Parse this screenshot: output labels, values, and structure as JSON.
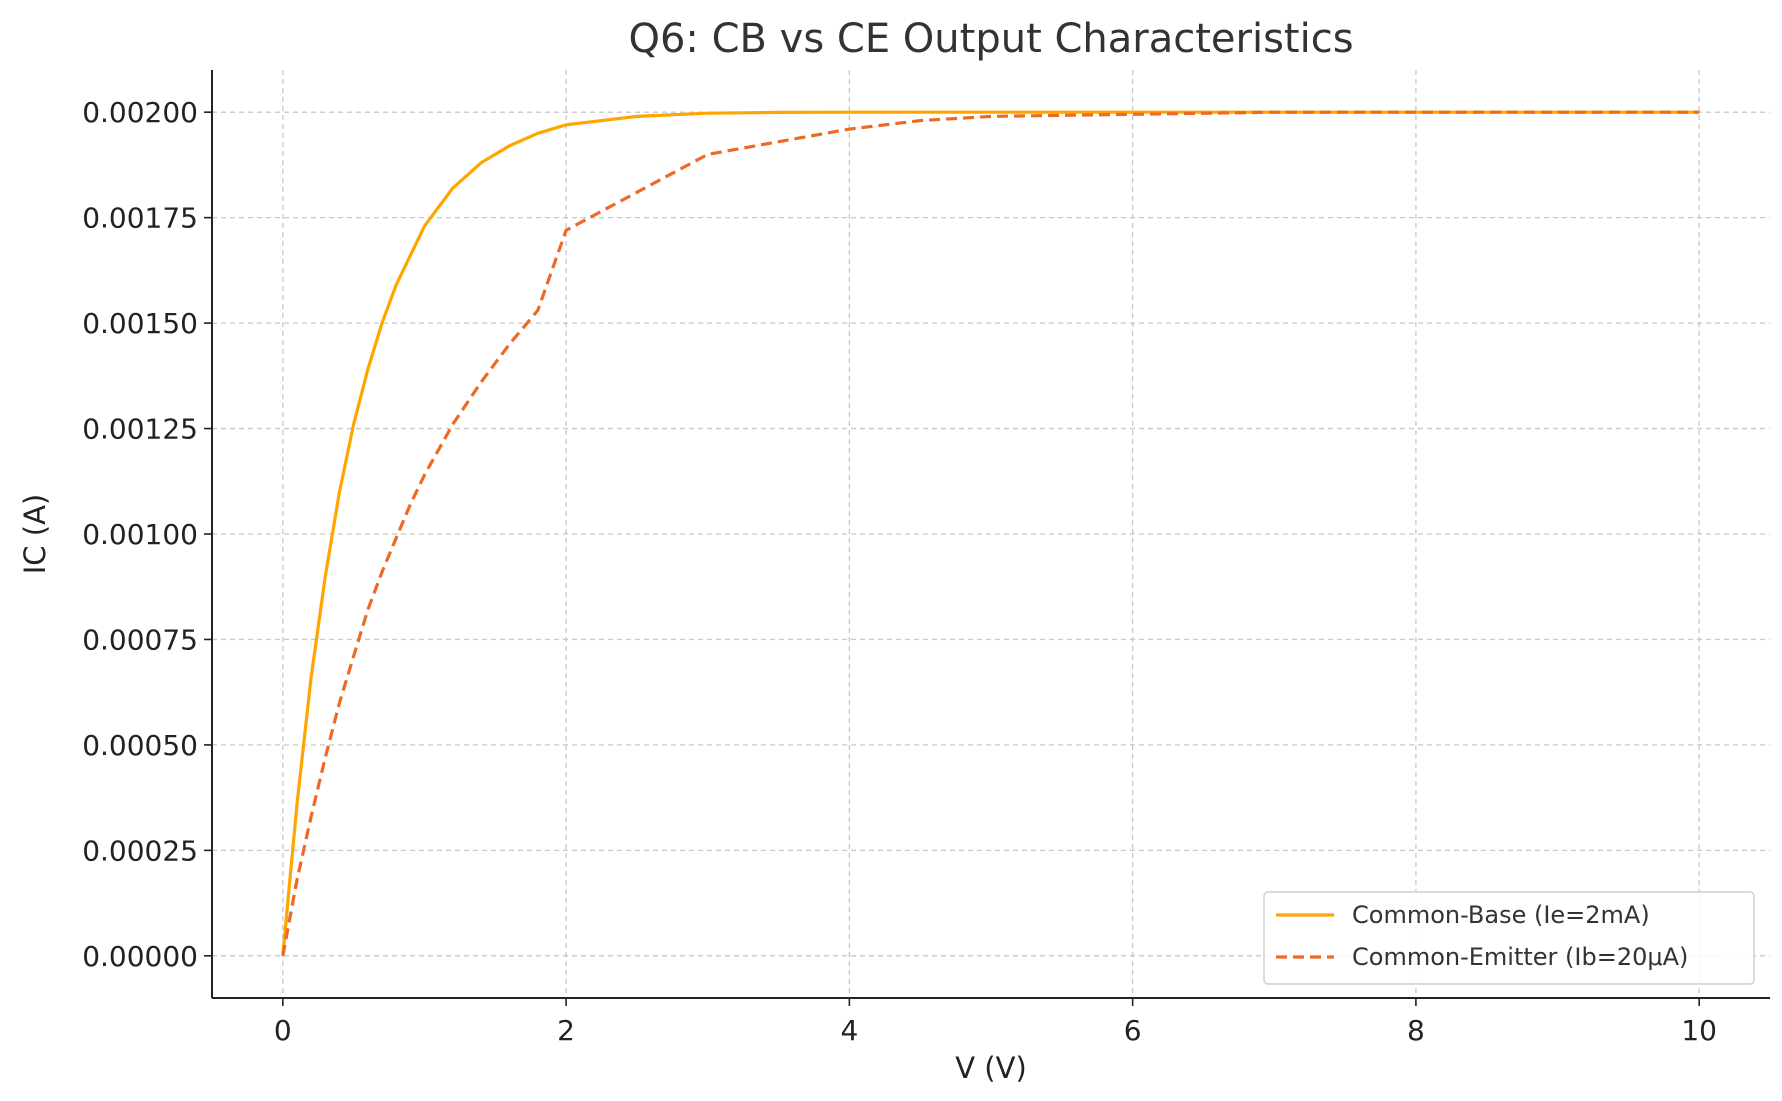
{
  "chart_data": {
    "type": "line",
    "title": "Q6: CB vs CE Output Characteristics",
    "xlabel": "V (V)",
    "ylabel": "IC (A)",
    "xlim": [
      -0.5,
      10.5
    ],
    "ylim": [
      -0.0001,
      0.0021
    ],
    "xticks": [
      0,
      2,
      4,
      6,
      8,
      10
    ],
    "xtick_labels": [
      "0",
      "2",
      "4",
      "6",
      "8",
      "10"
    ],
    "yticks": [
      0,
      0.00025,
      0.0005,
      0.00075,
      0.001,
      0.00125,
      0.0015,
      0.00175,
      0.002
    ],
    "ytick_labels": [
      "0.00000",
      "0.00025",
      "0.00050",
      "0.00075",
      "0.00100",
      "0.00125",
      "0.00150",
      "0.00175",
      "0.00200"
    ],
    "grid": true,
    "legend_position": "bottom-right",
    "series": [
      {
        "name": "Common-Base (Ie=2mA)",
        "color": "#FFA500",
        "style": "solid",
        "x": [
          0,
          0.1,
          0.2,
          0.3,
          0.4,
          0.5,
          0.6,
          0.7,
          0.8,
          0.9,
          1.0,
          1.2,
          1.4,
          1.6,
          1.8,
          2.0,
          2.5,
          3.0,
          3.5,
          4.0,
          5.0,
          6.0,
          7.0,
          8.0,
          9.0,
          10.0
        ],
        "y": [
          0,
          0.00036,
          0.00066,
          0.0009,
          0.0011,
          0.00126,
          0.00139,
          0.0015,
          0.00159,
          0.00166,
          0.00173,
          0.00182,
          0.00188,
          0.00192,
          0.00195,
          0.00197,
          0.00199,
          0.0019975,
          0.0019995,
          0.002,
          0.002,
          0.002,
          0.002,
          0.002,
          0.002,
          0.002
        ]
      },
      {
        "name": "Common-Emitter (Ib=20μA)",
        "color": "#EE6A24",
        "style": "dashed",
        "x": [
          0,
          0.1,
          0.2,
          0.3,
          0.4,
          0.5,
          0.6,
          0.7,
          0.8,
          0.9,
          1.0,
          1.2,
          1.4,
          1.6,
          1.8,
          2.0,
          2.5,
          3.0,
          3.5,
          4.0,
          4.5,
          5.0,
          6.0,
          7.0,
          8.0,
          9.0,
          10.0
        ],
        "y": [
          0,
          0.00018,
          0.00033,
          0.00047,
          0.0006,
          0.00071,
          0.00082,
          0.00091,
          0.00099,
          0.00107,
          0.00114,
          0.00126,
          0.00136,
          0.00145,
          0.00153,
          0.00172,
          0.00181,
          0.0019,
          0.00193,
          0.00196,
          0.00198,
          0.00199,
          0.001995,
          0.002,
          0.002,
          0.002,
          0.002
        ]
      }
    ]
  }
}
